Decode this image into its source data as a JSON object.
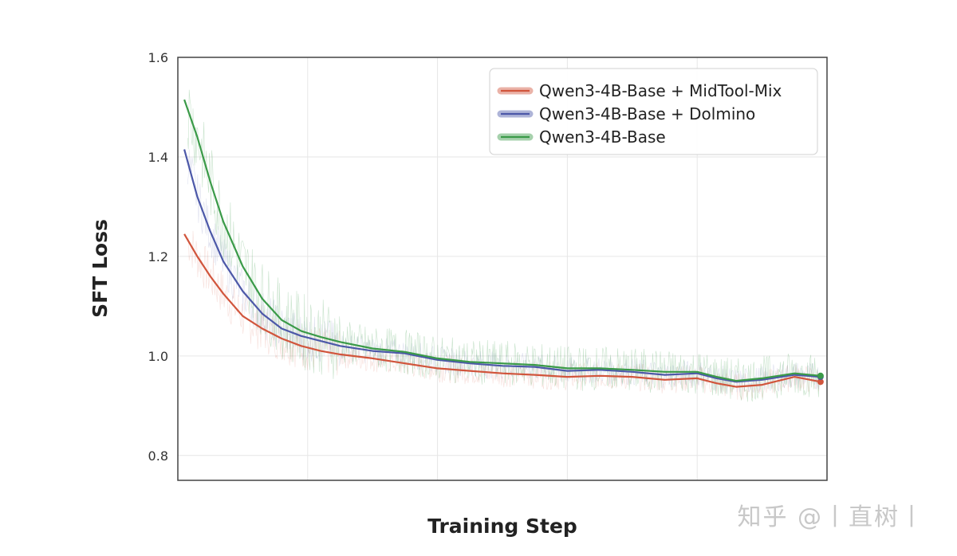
{
  "chart_data": {
    "type": "line",
    "title": "",
    "xlabel": "Training Step",
    "ylabel": "SFT Loss",
    "xlim": [
      0,
      100
    ],
    "ylim": [
      0.75,
      1.6
    ],
    "yticks": [
      "0.8",
      "1.0",
      "1.2",
      "1.4",
      "1.6"
    ],
    "ytick_values": [
      0.8,
      1.0,
      1.2,
      1.4,
      1.6
    ],
    "grid": true,
    "legend_position": "top-right",
    "series": [
      {
        "name": "Qwen3-4B-Base + MidTool-Mix",
        "color": "#d1553c",
        "x": [
          1,
          3,
          5,
          7,
          10,
          13,
          16,
          19,
          22,
          25,
          30,
          35,
          40,
          45,
          50,
          55,
          60,
          65,
          70,
          75,
          80,
          83,
          86,
          90,
          95,
          99
        ],
        "y": [
          1.245,
          1.2,
          1.16,
          1.125,
          1.08,
          1.055,
          1.035,
          1.02,
          1.01,
          1.003,
          0.995,
          0.985,
          0.975,
          0.97,
          0.965,
          0.962,
          0.958,
          0.96,
          0.958,
          0.952,
          0.955,
          0.945,
          0.938,
          0.942,
          0.958,
          0.948
        ]
      },
      {
        "name": "Qwen3-4B-Base + Dolmino",
        "color": "#4c58a8",
        "x": [
          1,
          3,
          5,
          7,
          10,
          13,
          16,
          19,
          22,
          25,
          30,
          35,
          40,
          45,
          50,
          55,
          60,
          65,
          70,
          75,
          80,
          83,
          86,
          90,
          95,
          99
        ],
        "y": [
          1.415,
          1.32,
          1.25,
          1.19,
          1.13,
          1.085,
          1.055,
          1.04,
          1.03,
          1.02,
          1.01,
          1.005,
          0.992,
          0.985,
          0.98,
          0.978,
          0.97,
          0.972,
          0.968,
          0.962,
          0.965,
          0.955,
          0.948,
          0.952,
          0.962,
          0.958
        ]
      },
      {
        "name": "Qwen3-4B-Base",
        "color": "#3a9a48",
        "x": [
          1,
          3,
          5,
          7,
          10,
          13,
          16,
          19,
          22,
          25,
          30,
          35,
          40,
          45,
          50,
          55,
          60,
          65,
          70,
          75,
          80,
          83,
          86,
          90,
          95,
          99
        ],
        "y": [
          1.515,
          1.44,
          1.35,
          1.27,
          1.18,
          1.115,
          1.072,
          1.05,
          1.038,
          1.028,
          1.015,
          1.008,
          0.995,
          0.988,
          0.985,
          0.982,
          0.975,
          0.975,
          0.972,
          0.968,
          0.968,
          0.958,
          0.95,
          0.955,
          0.965,
          0.96
        ]
      }
    ]
  },
  "watermark": "知乎 @丨直树丨"
}
